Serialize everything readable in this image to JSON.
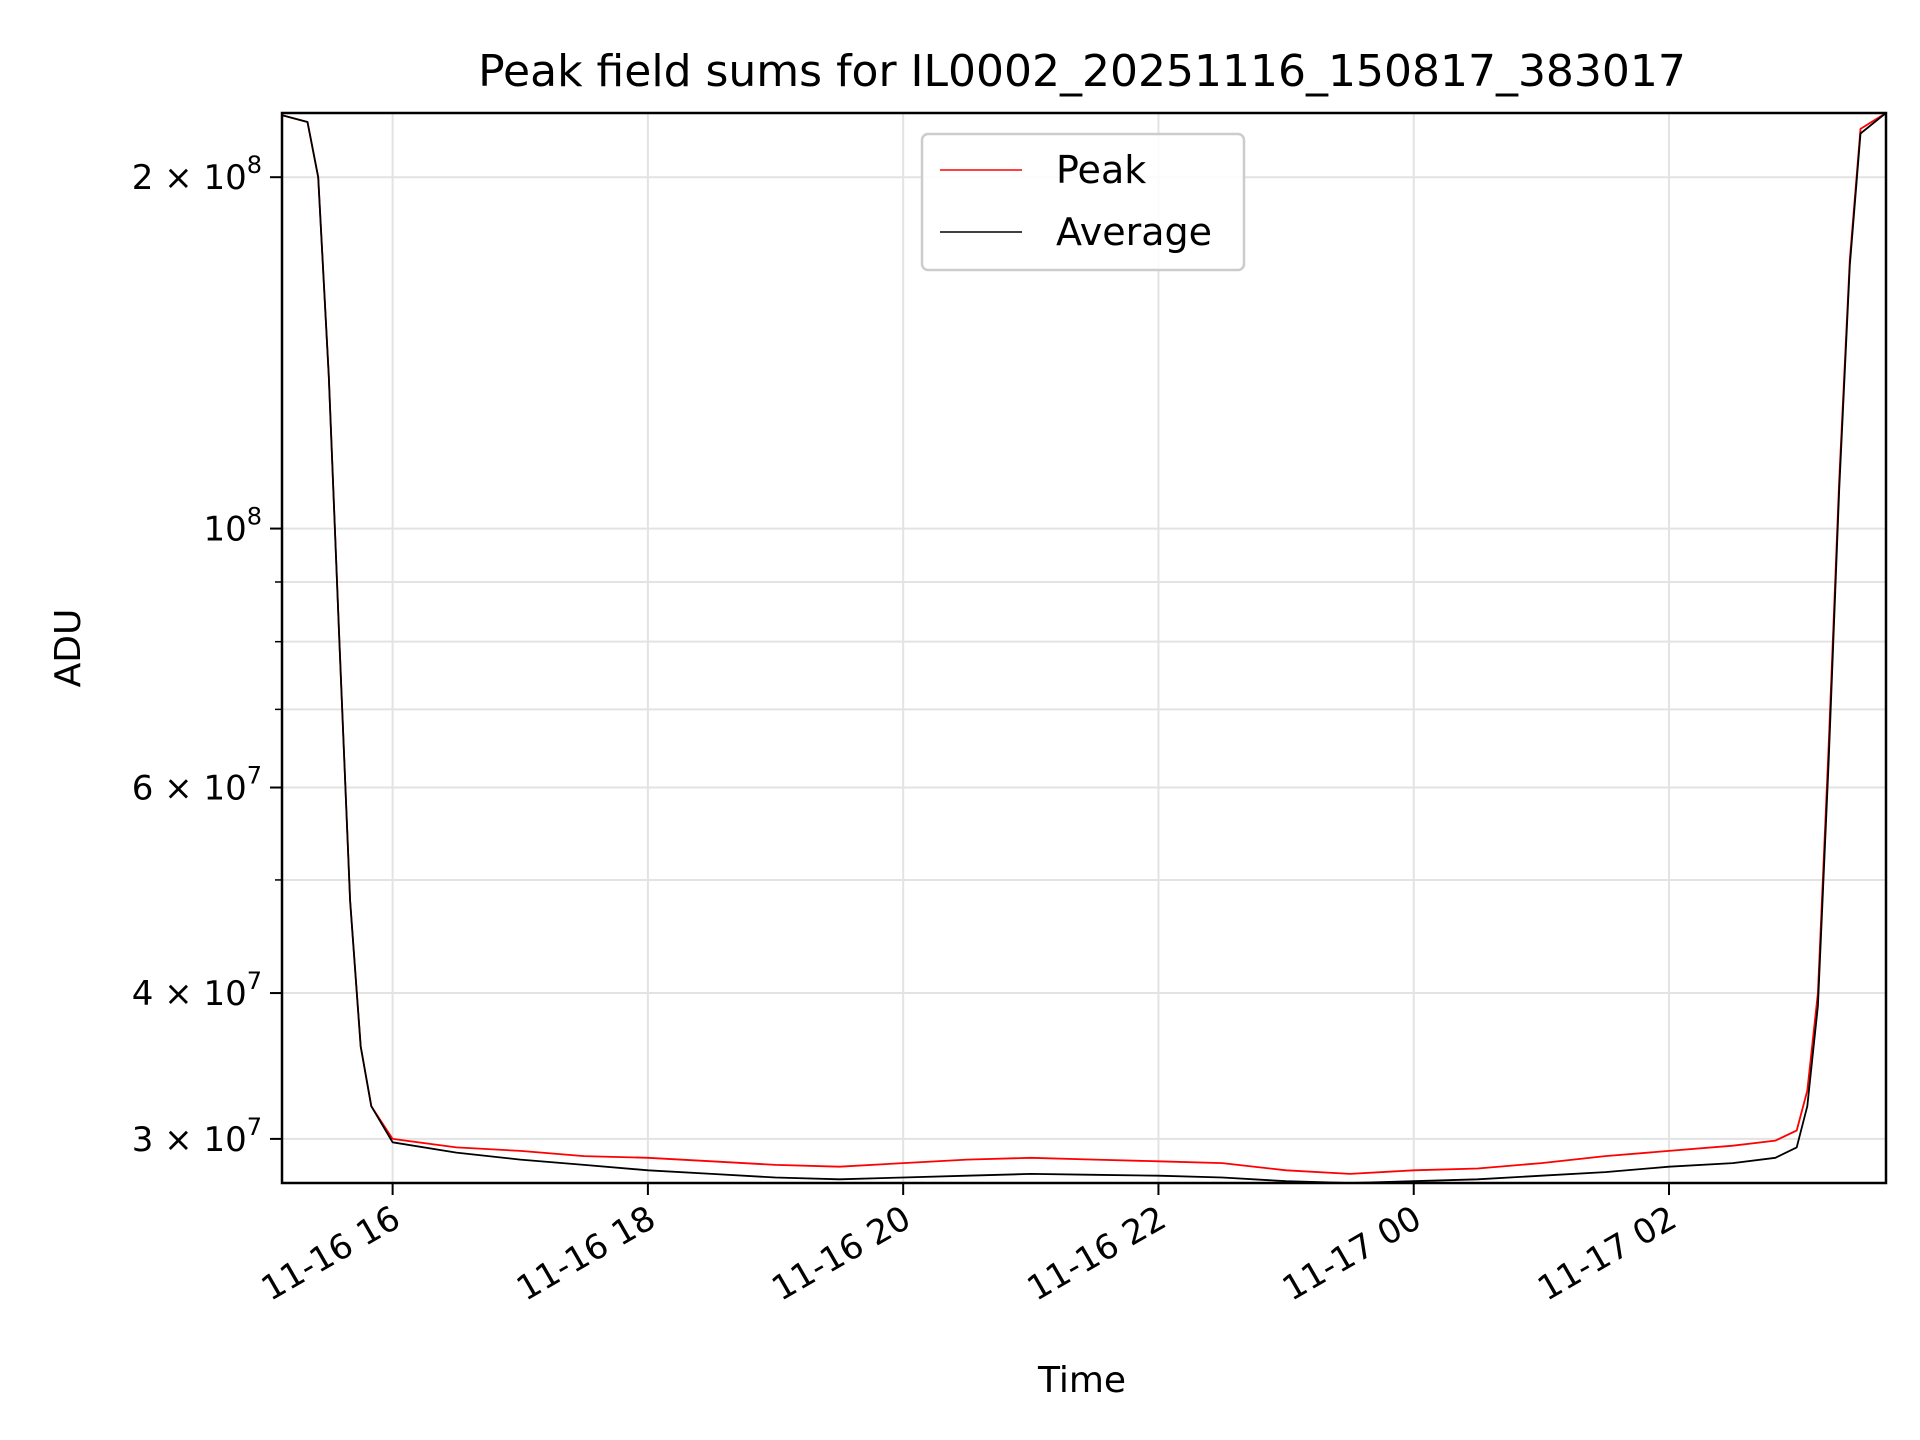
{
  "chart_data": {
    "type": "line",
    "title": "Peak field sums for IL0002_20251116_150817_383017",
    "xlabel": "Time",
    "ylabel": "ADU",
    "yscale": "log",
    "grid": true,
    "legend_position": "top-center",
    "xlim": [
      "2025-11-16 15:08",
      "2025-11-17 03:42"
    ],
    "ylim": [
      27500000,
      227000000
    ],
    "x_ticks": [
      {
        "t": "2025-11-16 16:00",
        "label": "11-16 16"
      },
      {
        "t": "2025-11-16 18:00",
        "label": "11-16 18"
      },
      {
        "t": "2025-11-16 20:00",
        "label": "11-16 20"
      },
      {
        "t": "2025-11-16 22:00",
        "label": "11-16 22"
      },
      {
        "t": "2025-11-17 00:00",
        "label": "11-17 00"
      },
      {
        "t": "2025-11-17 02:00",
        "label": "11-17 02"
      }
    ],
    "y_ticks_major": [
      {
        "v": 30000000,
        "base": "3 × 10",
        "exp": "7"
      },
      {
        "v": 40000000,
        "base": "4 × 10",
        "exp": "7"
      },
      {
        "v": 60000000,
        "base": "6 × 10",
        "exp": "7"
      },
      {
        "v": 100000000,
        "base": "10",
        "exp": "8"
      },
      {
        "v": 200000000,
        "base": "2 × 10",
        "exp": "8"
      }
    ],
    "y_ticks_minor": [
      50000000,
      70000000,
      80000000,
      90000000
    ],
    "series": [
      {
        "name": "Peak",
        "color": "#ff0000",
        "x": [
          "2025-11-16 15:08",
          "2025-11-16 15:20",
          "2025-11-16 15:25",
          "2025-11-16 15:30",
          "2025-11-16 15:35",
          "2025-11-16 15:40",
          "2025-11-16 15:45",
          "2025-11-16 15:50",
          "2025-11-16 16:00",
          "2025-11-16 16:30",
          "2025-11-16 17:00",
          "2025-11-16 17:30",
          "2025-11-16 18:00",
          "2025-11-16 18:30",
          "2025-11-16 19:00",
          "2025-11-16 19:30",
          "2025-11-16 20:00",
          "2025-11-16 20:30",
          "2025-11-16 21:00",
          "2025-11-16 21:30",
          "2025-11-16 22:00",
          "2025-11-16 22:30",
          "2025-11-16 23:00",
          "2025-11-16 23:30",
          "2025-11-17 00:00",
          "2025-11-17 00:30",
          "2025-11-17 01:00",
          "2025-11-17 01:30",
          "2025-11-17 02:00",
          "2025-11-17 02:30",
          "2025-11-17 02:50",
          "2025-11-17 03:00",
          "2025-11-17 03:05",
          "2025-11-17 03:10",
          "2025-11-17 03:15",
          "2025-11-17 03:20",
          "2025-11-17 03:25",
          "2025-11-17 03:30",
          "2025-11-17 03:42"
        ],
        "y": [
          226000000,
          223000000,
          200000000,
          135000000,
          80000000,
          48000000,
          36000000,
          32000000,
          30000000,
          29500000,
          29300000,
          29000000,
          28900000,
          28700000,
          28500000,
          28400000,
          28600000,
          28800000,
          28900000,
          28800000,
          28700000,
          28600000,
          28200000,
          28000000,
          28200000,
          28300000,
          28600000,
          29000000,
          29300000,
          29600000,
          29900000,
          30500000,
          33000000,
          40000000,
          65000000,
          110000000,
          170000000,
          220000000,
          227000000
        ]
      },
      {
        "name": "Average",
        "color": "#000000",
        "x": [
          "2025-11-16 15:08",
          "2025-11-16 15:20",
          "2025-11-16 15:25",
          "2025-11-16 15:30",
          "2025-11-16 15:35",
          "2025-11-16 15:40",
          "2025-11-16 15:45",
          "2025-11-16 15:50",
          "2025-11-16 16:00",
          "2025-11-16 16:30",
          "2025-11-16 17:00",
          "2025-11-16 17:30",
          "2025-11-16 18:00",
          "2025-11-16 18:30",
          "2025-11-16 19:00",
          "2025-11-16 19:30",
          "2025-11-16 20:00",
          "2025-11-16 20:30",
          "2025-11-16 21:00",
          "2025-11-16 21:30",
          "2025-11-16 22:00",
          "2025-11-16 22:30",
          "2025-11-16 23:00",
          "2025-11-16 23:30",
          "2025-11-17 00:00",
          "2025-11-17 00:30",
          "2025-11-17 01:00",
          "2025-11-17 01:30",
          "2025-11-17 02:00",
          "2025-11-17 02:30",
          "2025-11-17 02:50",
          "2025-11-17 03:00",
          "2025-11-17 03:05",
          "2025-11-17 03:10",
          "2025-11-17 03:15",
          "2025-11-17 03:20",
          "2025-11-17 03:25",
          "2025-11-17 03:30",
          "2025-11-17 03:42"
        ],
        "y": [
          226000000,
          223000000,
          200000000,
          135000000,
          80000000,
          48000000,
          36000000,
          32000000,
          29800000,
          29200000,
          28800000,
          28500000,
          28200000,
          28000000,
          27800000,
          27700000,
          27800000,
          27900000,
          28000000,
          27950000,
          27900000,
          27800000,
          27600000,
          27500000,
          27600000,
          27700000,
          27900000,
          28100000,
          28400000,
          28600000,
          28900000,
          29500000,
          32000000,
          39000000,
          63000000,
          108000000,
          168000000,
          218000000,
          227000000
        ]
      }
    ]
  }
}
